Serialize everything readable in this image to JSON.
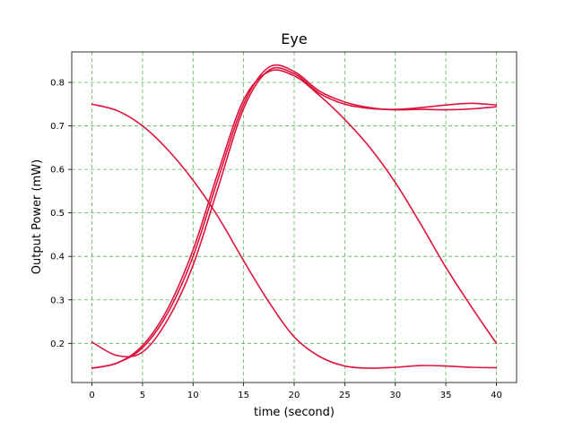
{
  "chart_data": {
    "type": "line",
    "title": "Eye",
    "xlabel": "time (second)",
    "ylabel": "Output Power (mW)",
    "xlim": [
      -2,
      42
    ],
    "ylim": [
      0.11,
      0.87
    ],
    "xticks": [
      0,
      5,
      10,
      15,
      20,
      25,
      30,
      35,
      40
    ],
    "yticks": [
      0.2,
      0.3,
      0.4,
      0.5,
      0.6,
      0.7,
      0.8
    ],
    "grid": true,
    "line_color": "#dc143c",
    "grid_color": "#3aa53a",
    "series": [
      {
        "x": [
          0,
          2.5,
          5,
          7.5,
          10,
          12.5,
          15,
          17.5,
          20,
          22.5,
          25,
          27.5,
          30,
          32.5,
          35,
          37.5,
          40
        ],
        "values": [
          0.75,
          0.735,
          0.7,
          0.645,
          0.575,
          0.49,
          0.39,
          0.295,
          0.215,
          0.17,
          0.148,
          0.143,
          0.145,
          0.149,
          0.148,
          0.145,
          0.144
        ]
      },
      {
        "x": [
          0,
          2.5,
          5,
          7.5,
          10,
          12.5,
          15,
          17.5,
          20,
          22.5,
          25,
          27.5,
          30,
          32.5,
          35,
          37.5,
          40
        ],
        "values": [
          0.143,
          0.155,
          0.19,
          0.27,
          0.4,
          0.58,
          0.75,
          0.835,
          0.825,
          0.78,
          0.755,
          0.742,
          0.737,
          0.738,
          0.737,
          0.739,
          0.744
        ]
      },
      {
        "x": [
          0,
          2.5,
          5,
          7.5,
          10,
          12.5,
          15,
          17.5,
          20,
          22.5,
          25,
          27.5,
          30,
          32.5,
          35,
          37.5,
          40
        ],
        "values": [
          0.203,
          0.172,
          0.18,
          0.255,
          0.38,
          0.56,
          0.74,
          0.828,
          0.82,
          0.775,
          0.75,
          0.74,
          0.738,
          0.742,
          0.748,
          0.752,
          0.748
        ]
      },
      {
        "x": [
          0,
          2.5,
          5,
          7.5,
          10,
          12.5,
          15,
          17.5,
          20,
          22.5,
          25,
          27.5,
          30,
          32.5,
          35,
          37.5,
          40
        ],
        "values": [
          0.143,
          0.155,
          0.195,
          0.28,
          0.415,
          0.595,
          0.76,
          0.825,
          0.815,
          0.77,
          0.715,
          0.65,
          0.57,
          0.475,
          0.375,
          0.285,
          0.2
        ]
      }
    ]
  }
}
